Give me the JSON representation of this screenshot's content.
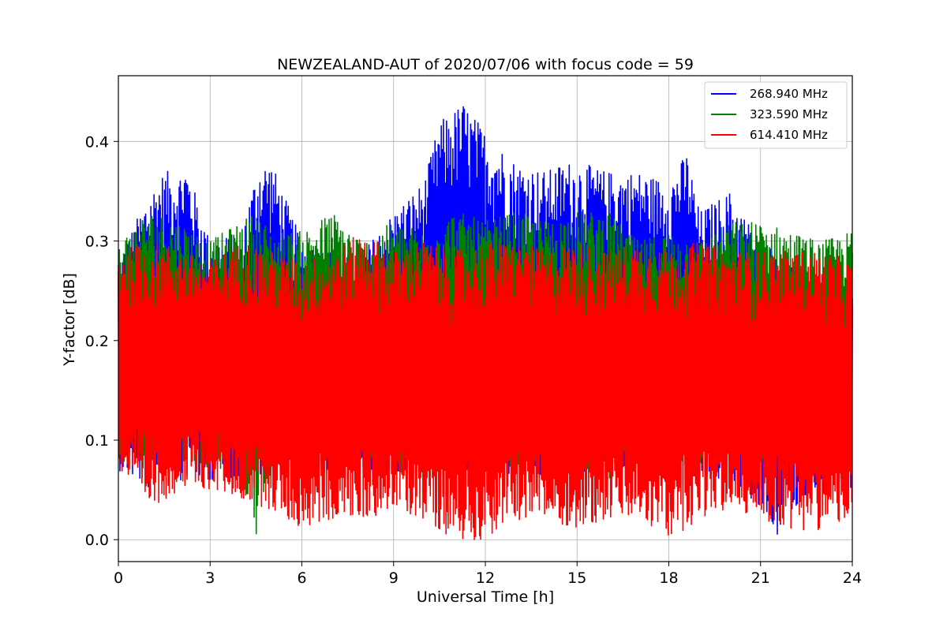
{
  "chart_data": {
    "type": "line",
    "title": "NEWZEALAND-AUT of 2020/07/06 with focus code = 59",
    "xlabel": "Universal Time [h]",
    "ylabel": "Y-factor [dB]",
    "xlim": [
      0,
      24
    ],
    "ylim": [
      -0.022,
      0.466
    ],
    "xticks": [
      0,
      3,
      6,
      9,
      12,
      15,
      18,
      21,
      24
    ],
    "xtick_labels": [
      "0",
      "3",
      "6",
      "9",
      "12",
      "15",
      "18",
      "21",
      "24"
    ],
    "yticks": [
      0.0,
      0.1,
      0.2,
      0.3,
      0.4
    ],
    "ytick_labels": [
      "0.0",
      "0.1",
      "0.2",
      "0.3",
      "0.4"
    ],
    "grid": true,
    "legend_position": "top-right",
    "series": [
      {
        "name": "268.940 MHz",
        "color": "#0000ff",
        "x": [
          0,
          1,
          1.5,
          2,
          2.2,
          3,
          4,
          4.6,
          5,
          6,
          7,
          8,
          9,
          10,
          10.5,
          11.3,
          12,
          13,
          14,
          14.6,
          15,
          16,
          17,
          18,
          18.6,
          19,
          20,
          21,
          21.5,
          22,
          23,
          24
        ],
        "min": [
          0.07,
          0.05,
          0.07,
          0.06,
          0.06,
          0.06,
          0.06,
          0.06,
          0.07,
          0.06,
          0.07,
          0.06,
          0.06,
          0.07,
          0.08,
          0.07,
          0.06,
          0.06,
          0.06,
          0.07,
          0.06,
          0.07,
          0.07,
          0.08,
          0.07,
          0.06,
          0.06,
          0.03,
          0.0,
          0.03,
          0.04,
          0.05
        ],
        "max": [
          0.28,
          0.35,
          0.37,
          0.37,
          0.38,
          0.3,
          0.31,
          0.38,
          0.38,
          0.3,
          0.29,
          0.29,
          0.33,
          0.36,
          0.42,
          0.44,
          0.41,
          0.38,
          0.37,
          0.38,
          0.38,
          0.37,
          0.37,
          0.36,
          0.39,
          0.33,
          0.35,
          0.3,
          0.3,
          0.28,
          0.26,
          0.25
        ]
      },
      {
        "name": "323.590 MHz",
        "color": "#008000",
        "x": [
          0,
          1,
          2,
          3,
          4,
          4.5,
          5,
          6,
          7,
          8,
          9,
          10,
          11,
          12,
          13,
          14,
          15,
          16,
          17,
          18,
          19,
          20,
          21,
          22,
          23,
          24
        ],
        "min": [
          0.08,
          0.07,
          0.08,
          0.07,
          0.06,
          0.0,
          0.07,
          0.06,
          0.07,
          0.07,
          0.07,
          0.06,
          0.07,
          0.06,
          0.07,
          0.06,
          0.07,
          0.06,
          0.07,
          0.08,
          0.07,
          0.07,
          0.08,
          0.07,
          0.07,
          0.08
        ],
        "max": [
          0.3,
          0.33,
          0.32,
          0.3,
          0.32,
          0.33,
          0.31,
          0.31,
          0.33,
          0.3,
          0.32,
          0.31,
          0.33,
          0.32,
          0.33,
          0.32,
          0.33,
          0.33,
          0.3,
          0.31,
          0.3,
          0.32,
          0.32,
          0.31,
          0.3,
          0.31
        ]
      },
      {
        "name": "614.410 MHz",
        "color": "#ff0000",
        "x": [
          0,
          1,
          2,
          3,
          4,
          5,
          6,
          7,
          8,
          9,
          10,
          11,
          12,
          13,
          14,
          15,
          16,
          17,
          18,
          19,
          20,
          21,
          22,
          23,
          24
        ],
        "min": [
          0.07,
          0.03,
          0.05,
          0.05,
          0.04,
          0.03,
          0.01,
          0.02,
          0.02,
          0.03,
          0.02,
          0.0,
          0.0,
          0.02,
          0.02,
          0.01,
          0.02,
          0.02,
          0.0,
          0.02,
          0.03,
          0.02,
          0.01,
          0.01,
          0.02
        ],
        "max": [
          0.29,
          0.3,
          0.29,
          0.28,
          0.3,
          0.29,
          0.28,
          0.29,
          0.31,
          0.29,
          0.3,
          0.29,
          0.3,
          0.3,
          0.29,
          0.3,
          0.29,
          0.3,
          0.29,
          0.3,
          0.29,
          0.29,
          0.29,
          0.29,
          0.28
        ]
      }
    ]
  }
}
